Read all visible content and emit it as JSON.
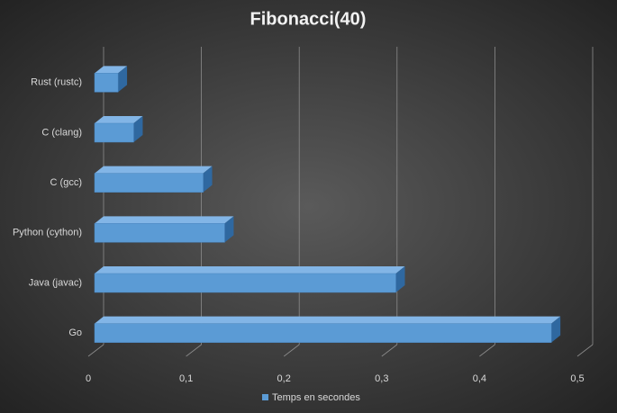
{
  "chart_data": {
    "type": "bar3d",
    "orientation": "horizontal",
    "title": "Fibonacci(40)",
    "categories": [
      "Rust (rustc)",
      "C (clang)",
      "C (gcc)",
      "Python (cython)",
      "Java (javac)",
      "Go"
    ],
    "series": [
      {
        "name": "Temps en secondes",
        "color": "#5b9bd5",
        "values": [
          0.024,
          0.04,
          0.111,
          0.133,
          0.308,
          0.467
        ]
      }
    ],
    "xlim": [
      0,
      0.5
    ],
    "xticks": [
      0,
      {
        "value": 0.1,
        "label": "0,1"
      },
      {
        "value": 0.2,
        "label": "0,2"
      },
      {
        "value": 0.3,
        "label": "0,3"
      },
      {
        "value": 0.4,
        "label": "0,4"
      },
      {
        "value": 0.5,
        "label": "0,5"
      }
    ],
    "grid": true,
    "legend": "bottom"
  }
}
